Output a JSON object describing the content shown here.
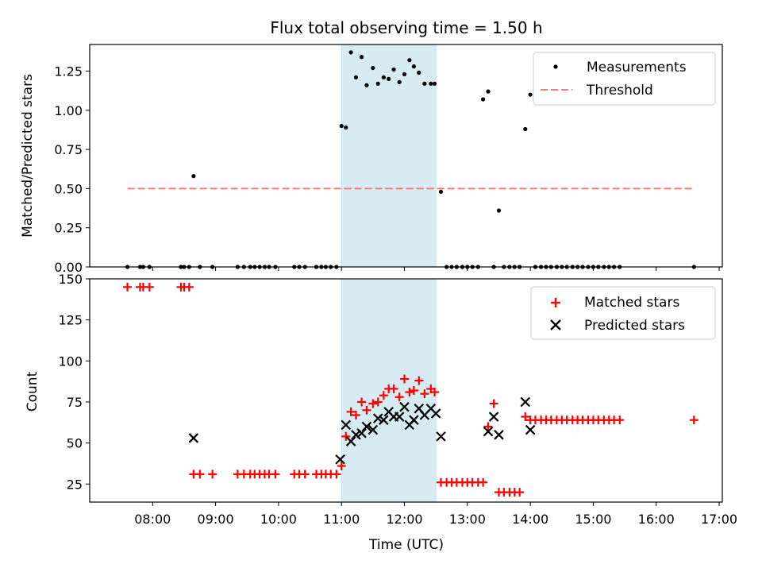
{
  "chart_data": [
    {
      "type": "scatter",
      "title": "Flux total observing time = 1.50 h",
      "ylabel": "Matched/Predicted stars",
      "xlabel": "",
      "xlim": [
        7.0,
        17.05
      ],
      "ylim": [
        0,
        1.42
      ],
      "yticks": [
        0,
        0.25,
        0.5,
        0.75,
        1.0,
        1.25
      ],
      "ytick_labels": [
        "0.00",
        "0.25",
        "0.50",
        "0.75",
        "1.00",
        "1.25"
      ],
      "legend": [
        "Measurements",
        "Threshold"
      ],
      "legend_position": "top-right",
      "shaded_span": [
        11.0,
        12.5
      ],
      "threshold": {
        "name": "Threshold",
        "value": 0.5,
        "x_range": [
          7.6,
          16.6
        ],
        "color": "#ff7777"
      },
      "series": [
        {
          "name": "Measurements",
          "color": "#000000",
          "x": [
            7.6,
            7.8,
            7.85,
            7.95,
            8.45,
            8.5,
            8.58,
            8.65,
            8.75,
            8.95,
            9.35,
            9.45,
            9.55,
            9.62,
            9.7,
            9.78,
            9.85,
            9.95,
            10.25,
            10.33,
            10.42,
            10.6,
            10.68,
            10.75,
            10.83,
            10.92,
            11.0,
            11.07,
            11.15,
            11.23,
            11.32,
            11.4,
            11.5,
            11.58,
            11.67,
            11.75,
            11.83,
            11.92,
            12.0,
            12.08,
            12.15,
            12.23,
            12.32,
            12.42,
            12.48,
            12.58,
            12.67,
            12.75,
            12.83,
            12.92,
            13.0,
            13.08,
            13.17,
            13.25,
            13.33,
            13.42,
            13.5,
            13.58,
            13.67,
            13.75,
            13.83,
            13.92,
            14.0,
            14.08,
            14.17,
            14.25,
            14.33,
            14.42,
            14.5,
            14.58,
            14.67,
            14.75,
            14.83,
            14.92,
            15.0,
            15.08,
            15.17,
            15.25,
            15.33,
            15.42,
            16.6
          ],
          "y": [
            0,
            0,
            0,
            0,
            0,
            0,
            0,
            0.58,
            0,
            0,
            0,
            0,
            0,
            0,
            0,
            0,
            0,
            0,
            0,
            0,
            0,
            0,
            0,
            0,
            0,
            0,
            0.9,
            0.89,
            1.37,
            1.21,
            1.34,
            1.16,
            1.27,
            1.17,
            1.21,
            1.2,
            1.26,
            1.18,
            1.23,
            1.32,
            1.28,
            1.24,
            1.17,
            1.17,
            1.17,
            0.48,
            0,
            0,
            0,
            0,
            0,
            0,
            0,
            1.07,
            1.12,
            0,
            0.36,
            0,
            0,
            0,
            0,
            0.88,
            1.1,
            0,
            0,
            0,
            0,
            0,
            0,
            0,
            0,
            0,
            0,
            0,
            0,
            0,
            0,
            0,
            0,
            0,
            0
          ]
        }
      ]
    },
    {
      "type": "scatter",
      "title": "",
      "xlabel": "Time (UTC)",
      "ylabel": "Count",
      "xlim": [
        7.0,
        17.05
      ],
      "ylim": [
        14,
        150
      ],
      "yticks": [
        25,
        50,
        75,
        100,
        125,
        150
      ],
      "ytick_labels": [
        "25",
        "50",
        "75",
        "100",
        "125",
        "150"
      ],
      "xticks": [
        8,
        9,
        10,
        11,
        12,
        13,
        14,
        15,
        16,
        17
      ],
      "xtick_labels": [
        "08:00",
        "09:00",
        "10:00",
        "11:00",
        "12:00",
        "13:00",
        "14:00",
        "15:00",
        "16:00",
        "17:00"
      ],
      "legend": [
        "Matched stars",
        "Predicted stars"
      ],
      "legend_position": "top-right",
      "shaded_span": [
        11.0,
        12.5
      ],
      "series": [
        {
          "name": "Matched stars",
          "marker": "plus",
          "color": "#ff0000",
          "x": [
            7.6,
            7.8,
            7.85,
            7.95,
            8.45,
            8.5,
            8.58,
            8.65,
            8.75,
            8.95,
            9.35,
            9.45,
            9.55,
            9.62,
            9.7,
            9.78,
            9.85,
            9.95,
            10.25,
            10.33,
            10.42,
            10.6,
            10.68,
            10.75,
            10.83,
            10.92,
            11.0,
            11.07,
            11.15,
            11.23,
            11.32,
            11.4,
            11.5,
            11.58,
            11.67,
            11.75,
            11.83,
            11.92,
            12.0,
            12.08,
            12.15,
            12.23,
            12.32,
            12.42,
            12.48,
            12.58,
            12.67,
            12.75,
            12.83,
            12.92,
            13.0,
            13.08,
            13.17,
            13.25,
            13.33,
            13.42,
            13.5,
            13.58,
            13.67,
            13.75,
            13.83,
            13.92,
            14.0,
            14.08,
            14.17,
            14.25,
            14.33,
            14.42,
            14.5,
            14.58,
            14.67,
            14.75,
            14.83,
            14.92,
            15.0,
            15.08,
            15.17,
            15.25,
            15.33,
            15.42,
            16.6
          ],
          "y": [
            145,
            145,
            145,
            145,
            145,
            145,
            145,
            31,
            31,
            31,
            31,
            31,
            31,
            31,
            31,
            31,
            31,
            31,
            31,
            31,
            31,
            31,
            31,
            31,
            31,
            31,
            36,
            54,
            69,
            67,
            75,
            70,
            74,
            75,
            79,
            83,
            83,
            78,
            89,
            81,
            82,
            88,
            80,
            83,
            81,
            26,
            26,
            26,
            26,
            26,
            26,
            26,
            26,
            26,
            60,
            74,
            20,
            20,
            20,
            20,
            20,
            66,
            64,
            64,
            64,
            64,
            64,
            64,
            64,
            64,
            64,
            64,
            64,
            64,
            64,
            64,
            64,
            64,
            64,
            64,
            64
          ]
        },
        {
          "name": "Predicted stars",
          "marker": "x",
          "color": "#000000",
          "x": [
            8.65,
            10.98,
            11.07,
            11.15,
            11.23,
            11.32,
            11.4,
            11.5,
            11.58,
            11.67,
            11.75,
            11.83,
            11.92,
            12.0,
            12.08,
            12.15,
            12.23,
            12.32,
            12.42,
            12.5,
            12.58,
            13.33,
            13.42,
            13.5,
            13.92,
            14.0
          ],
          "y": [
            53,
            40,
            61,
            51,
            55,
            56,
            60,
            58,
            65,
            64,
            69,
            66,
            66,
            72,
            61,
            64,
            71,
            67,
            71,
            68,
            54,
            57,
            66,
            55,
            75,
            58
          ]
        }
      ]
    }
  ]
}
